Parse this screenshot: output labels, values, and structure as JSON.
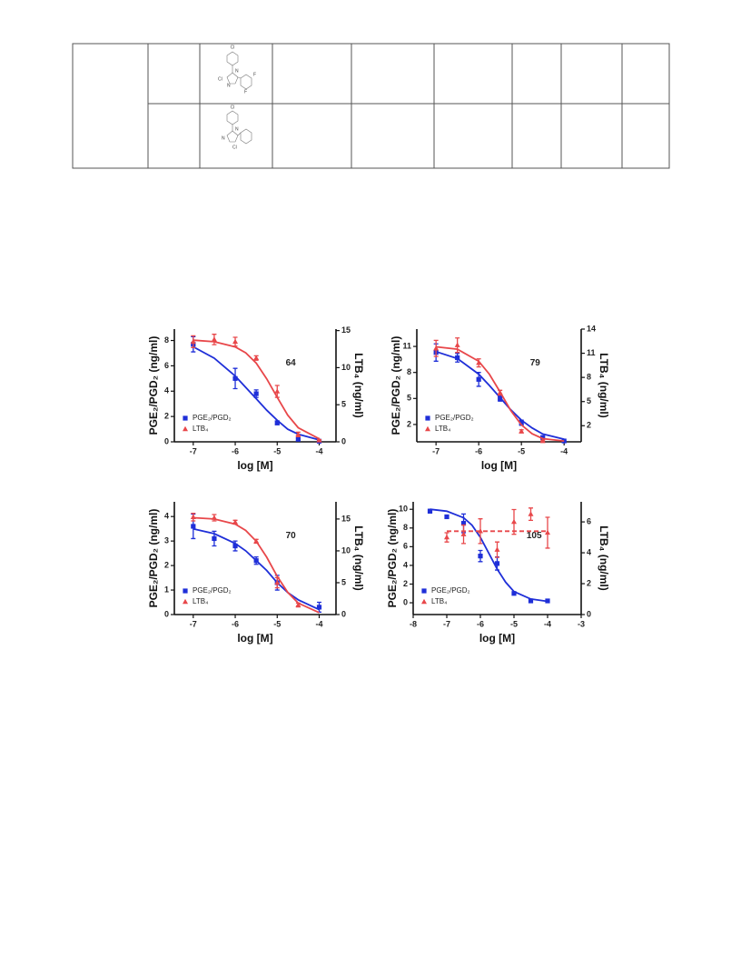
{
  "table": {
    "rows": [
      {
        "atoms": [
          "Cl",
          "N",
          "Cl",
          "N",
          "F",
          "F"
        ]
      },
      {
        "atoms": [
          "Cl",
          "N",
          "N",
          "Cl"
        ]
      }
    ]
  },
  "chart_data": [
    {
      "type": "scatter",
      "annotation": "64",
      "xlabel": "log [M]",
      "ylabel": "PGE₂/PGD₂ (ng/ml)",
      "y2label": "LTB₄ (ng/ml)",
      "xlim": [
        -7.45,
        -3.6
      ],
      "xticks": [
        -7,
        -6,
        -5,
        -4
      ],
      "ylim": [
        0,
        8.9
      ],
      "yticks": [
        0,
        2,
        4,
        6,
        8
      ],
      "y2lim": [
        0,
        15.2
      ],
      "y2ticks": [
        0,
        5,
        10,
        15
      ],
      "legend": "lower-left",
      "fit_x": [
        -7,
        -6.5,
        -6,
        -5.75,
        -5.5,
        -5.25,
        -5,
        -4.75,
        -4.5,
        -4
      ],
      "series": [
        {
          "name": "PGE₂/PGD₂",
          "color": "#1f2fd8",
          "marker": "square",
          "x": [
            -7,
            -6,
            -5.5,
            -5,
            -4.5,
            -4
          ],
          "values": [
            7.7,
            5.0,
            3.8,
            1.5,
            0.2,
            0.05
          ],
          "errors": [
            0.6,
            0.8,
            0.3,
            0.15,
            0.1,
            0.05
          ],
          "fit": [
            7.5,
            6.6,
            5.2,
            4.3,
            3.4,
            2.5,
            1.7,
            1.0,
            0.6,
            0.15
          ]
        },
        {
          "name": "LTB₄",
          "color": "#e8474a",
          "marker": "triangle",
          "axis": "y2",
          "x": [
            -7,
            -6.5,
            -6,
            -5.5,
            -5,
            -4.5,
            -4
          ],
          "values": [
            13.5,
            13.8,
            13.5,
            11.3,
            6.8,
            1.0,
            0.2
          ],
          "errors": [
            0.8,
            0.7,
            0.6,
            0.3,
            0.8,
            0.3,
            0.1
          ],
          "fit": [
            13.7,
            13.5,
            12.8,
            12.0,
            10.6,
            8.5,
            6.0,
            3.6,
            1.9,
            0.4
          ]
        }
      ]
    },
    {
      "type": "scatter",
      "annotation": "79",
      "xlabel": "log [M]",
      "ylabel": "PGE₂/PGD₂ (ng/ml)",
      "y2label": "LTB₄ (ng/ml)",
      "xlim": [
        -7.45,
        -3.6
      ],
      "xticks": [
        -7,
        -6,
        -5,
        -4
      ],
      "ylim": [
        0,
        13
      ],
      "yticks": [
        2,
        5,
        8,
        11
      ],
      "y2lim": [
        0,
        14
      ],
      "y2ticks": [
        2,
        5,
        8,
        11,
        14
      ],
      "legend": "lower-left",
      "fit_x": [
        -7,
        -6.5,
        -6,
        -5.75,
        -5.5,
        -5.25,
        -5,
        -4.75,
        -4.5,
        -4
      ],
      "series": [
        {
          "name": "PGE₂/PGD₂",
          "color": "#1f2fd8",
          "marker": "square",
          "x": [
            -7,
            -6.5,
            -6,
            -5.5,
            -5,
            -4.5,
            -4
          ],
          "values": [
            10.3,
            9.7,
            7.2,
            5.0,
            2.2,
            0.5,
            0.1
          ],
          "errors": [
            1.0,
            0.5,
            0.8,
            0.3,
            0.3,
            0.1,
            0.05
          ],
          "fit": [
            10.4,
            9.6,
            7.8,
            6.5,
            5.1,
            3.7,
            2.5,
            1.6,
            0.9,
            0.3
          ]
        },
        {
          "name": "LTB₄",
          "color": "#e8474a",
          "marker": "triangle",
          "axis": "y2",
          "x": [
            -7,
            -6.5,
            -6,
            -5.5,
            -5,
            -4.5
          ],
          "values": [
            11.6,
            12.0,
            9.8,
            6.1,
            1.3,
            0.1
          ],
          "errors": [
            1.0,
            0.9,
            0.5,
            0.3,
            0.2,
            0.1
          ],
          "fit": [
            11.8,
            11.5,
            10.0,
            8.4,
            6.2,
            3.9,
            2.1,
            1.0,
            0.4,
            0.1
          ]
        }
      ]
    },
    {
      "type": "scatter",
      "annotation": "70",
      "xlabel": "log [M]",
      "ylabel": "PGE₂/PGD₂ (ng/ml)",
      "y2label": "LTB₄ (ng/ml)",
      "xlim": [
        -7.45,
        -3.6
      ],
      "xticks": [
        -7,
        -6,
        -5,
        -4
      ],
      "ylim": [
        0,
        4.6
      ],
      "yticks": [
        0,
        1,
        2,
        3,
        4
      ],
      "y2lim": [
        0,
        17.7
      ],
      "y2ticks": [
        0,
        5,
        10,
        15
      ],
      "legend": "lower-left",
      "fit_x": [
        -7,
        -6.5,
        -6,
        -5.75,
        -5.5,
        -5.25,
        -5,
        -4.75,
        -4.5,
        -4
      ],
      "series": [
        {
          "name": "PGE₂/PGD₂",
          "color": "#1f2fd8",
          "marker": "square",
          "x": [
            -7,
            -6.5,
            -6,
            -5.5,
            -5,
            -4
          ],
          "values": [
            3.6,
            3.1,
            2.8,
            2.2,
            1.3,
            0.3
          ],
          "errors": [
            0.5,
            0.3,
            0.2,
            0.15,
            0.3,
            0.2
          ],
          "fit": [
            3.5,
            3.3,
            2.9,
            2.6,
            2.2,
            1.8,
            1.3,
            0.9,
            0.6,
            0.2
          ]
        },
        {
          "name": "LTB₄",
          "color": "#e8474a",
          "marker": "triangle",
          "axis": "y2",
          "x": [
            -7,
            -6.5,
            -6,
            -5.5,
            -5,
            -4.5
          ],
          "values": [
            15.3,
            15.2,
            14.5,
            11.5,
            5.0,
            1.5
          ],
          "errors": [
            0.6,
            0.5,
            0.3,
            0.3,
            0.8,
            0.3
          ],
          "fit": [
            15.2,
            15.0,
            14.2,
            13.2,
            11.5,
            9.0,
            6.0,
            3.5,
            1.8,
            0.3
          ]
        }
      ]
    },
    {
      "type": "scatter",
      "annotation": "105",
      "xlabel": "log [M]",
      "ylabel": "PGE₂/PGD₂ (ng/ml)",
      "y2label": "LTB₄ (ng/ml)",
      "xlim": [
        -8,
        -3
      ],
      "xticks": [
        -8,
        -7,
        -6,
        -5,
        -4,
        -3
      ],
      "ylim": [
        -1.26,
        10.8
      ],
      "yticks": [
        0,
        2,
        4,
        6,
        8,
        10
      ],
      "y2lim": [
        0,
        7.3
      ],
      "y2ticks": [
        0,
        2,
        4,
        6
      ],
      "legend": "lower-left",
      "fit_x": [
        -7.5,
        -7,
        -6.5,
        -6.25,
        -6,
        -5.75,
        -5.5,
        -5.25,
        -5,
        -4.5,
        -4
      ],
      "series": [
        {
          "name": "PGE₂/PGD₂",
          "color": "#1f2fd8",
          "marker": "square",
          "x": [
            -7.5,
            -7,
            -6.5,
            -6,
            -5.5,
            -5,
            -4.5,
            -4
          ],
          "values": [
            9.8,
            9.2,
            8.5,
            5.0,
            4.2,
            1.0,
            0.2,
            0.2
          ],
          "errors": [
            0.2,
            0.1,
            1.0,
            0.6,
            0.7,
            0.1,
            0.1,
            0.1
          ],
          "fit": [
            10.0,
            9.8,
            9.1,
            8.3,
            7.0,
            5.3,
            3.6,
            2.2,
            1.2,
            0.4,
            0.15
          ]
        },
        {
          "name": "LTB₄",
          "color": "#e8474a",
          "marker": "triangle",
          "axis": "y2",
          "dashed": true,
          "x": [
            -7,
            -6.5,
            -6,
            -5.5,
            -5,
            -4.5,
            -4
          ],
          "values": [
            5.0,
            5.2,
            5.4,
            4.2,
            6.0,
            6.5,
            5.3
          ],
          "errors": [
            0.3,
            0.6,
            0.8,
            0.5,
            0.8,
            0.4,
            1.0
          ],
          "fit": [
            null,
            5.4,
            5.4,
            5.4,
            5.4,
            5.4,
            5.4,
            5.4,
            5.4,
            5.4,
            5.4
          ]
        }
      ]
    }
  ]
}
